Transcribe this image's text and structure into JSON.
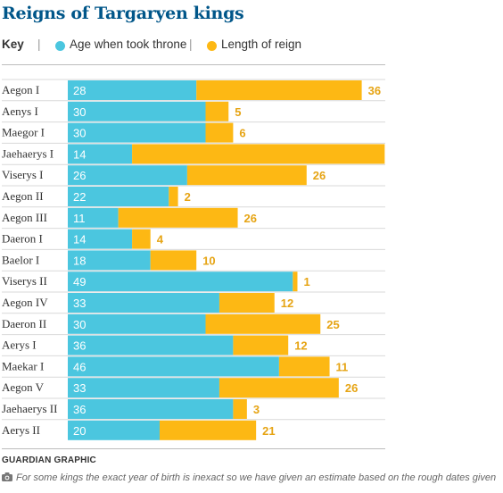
{
  "title": "Reigns of Targaryen kings",
  "key": {
    "label": "Key",
    "series1": "Age when took throne",
    "series2": "Length of reign"
  },
  "credit": "GUARDIAN GRAPHIC",
  "footnote": "For some kings the exact year of birth is inexact so we have given an estimate based on the rough dates given",
  "colors": {
    "age": "#4bc6df",
    "reign": "#fdb814",
    "title": "#005689",
    "text": "#333333",
    "reignLabel": "#e6a414"
  },
  "chart_data": {
    "type": "bar",
    "orientation": "horizontal",
    "stacked": true,
    "title": "Reigns of Targaryen kings",
    "categories": [
      "Aegon I",
      "Aenys I",
      "Maegor I",
      "Jaehaerys I",
      "Viserys I",
      "Aegon II",
      "Aegon III",
      "Daeron I",
      "Baelor I",
      "Viserys II",
      "Aegon IV",
      "Daeron II",
      "Aerys I",
      "Maekar I",
      "Aegon V",
      "Jaehaerys II",
      "Aerys II"
    ],
    "series": [
      {
        "name": "Age when took throne",
        "values": [
          28,
          30,
          30,
          14,
          26,
          22,
          11,
          14,
          18,
          49,
          33,
          30,
          36,
          46,
          33,
          36,
          20
        ]
      },
      {
        "name": "Length of reign",
        "values": [
          36,
          5,
          6,
          55,
          26,
          2,
          26,
          4,
          10,
          1,
          12,
          25,
          12,
          11,
          26,
          3,
          21
        ]
      }
    ],
    "reign_labels_shown": [
      true,
      true,
      true,
      false,
      true,
      true,
      true,
      true,
      true,
      true,
      true,
      true,
      true,
      true,
      true,
      true,
      true
    ],
    "xlim": [
      0,
      69
    ]
  }
}
